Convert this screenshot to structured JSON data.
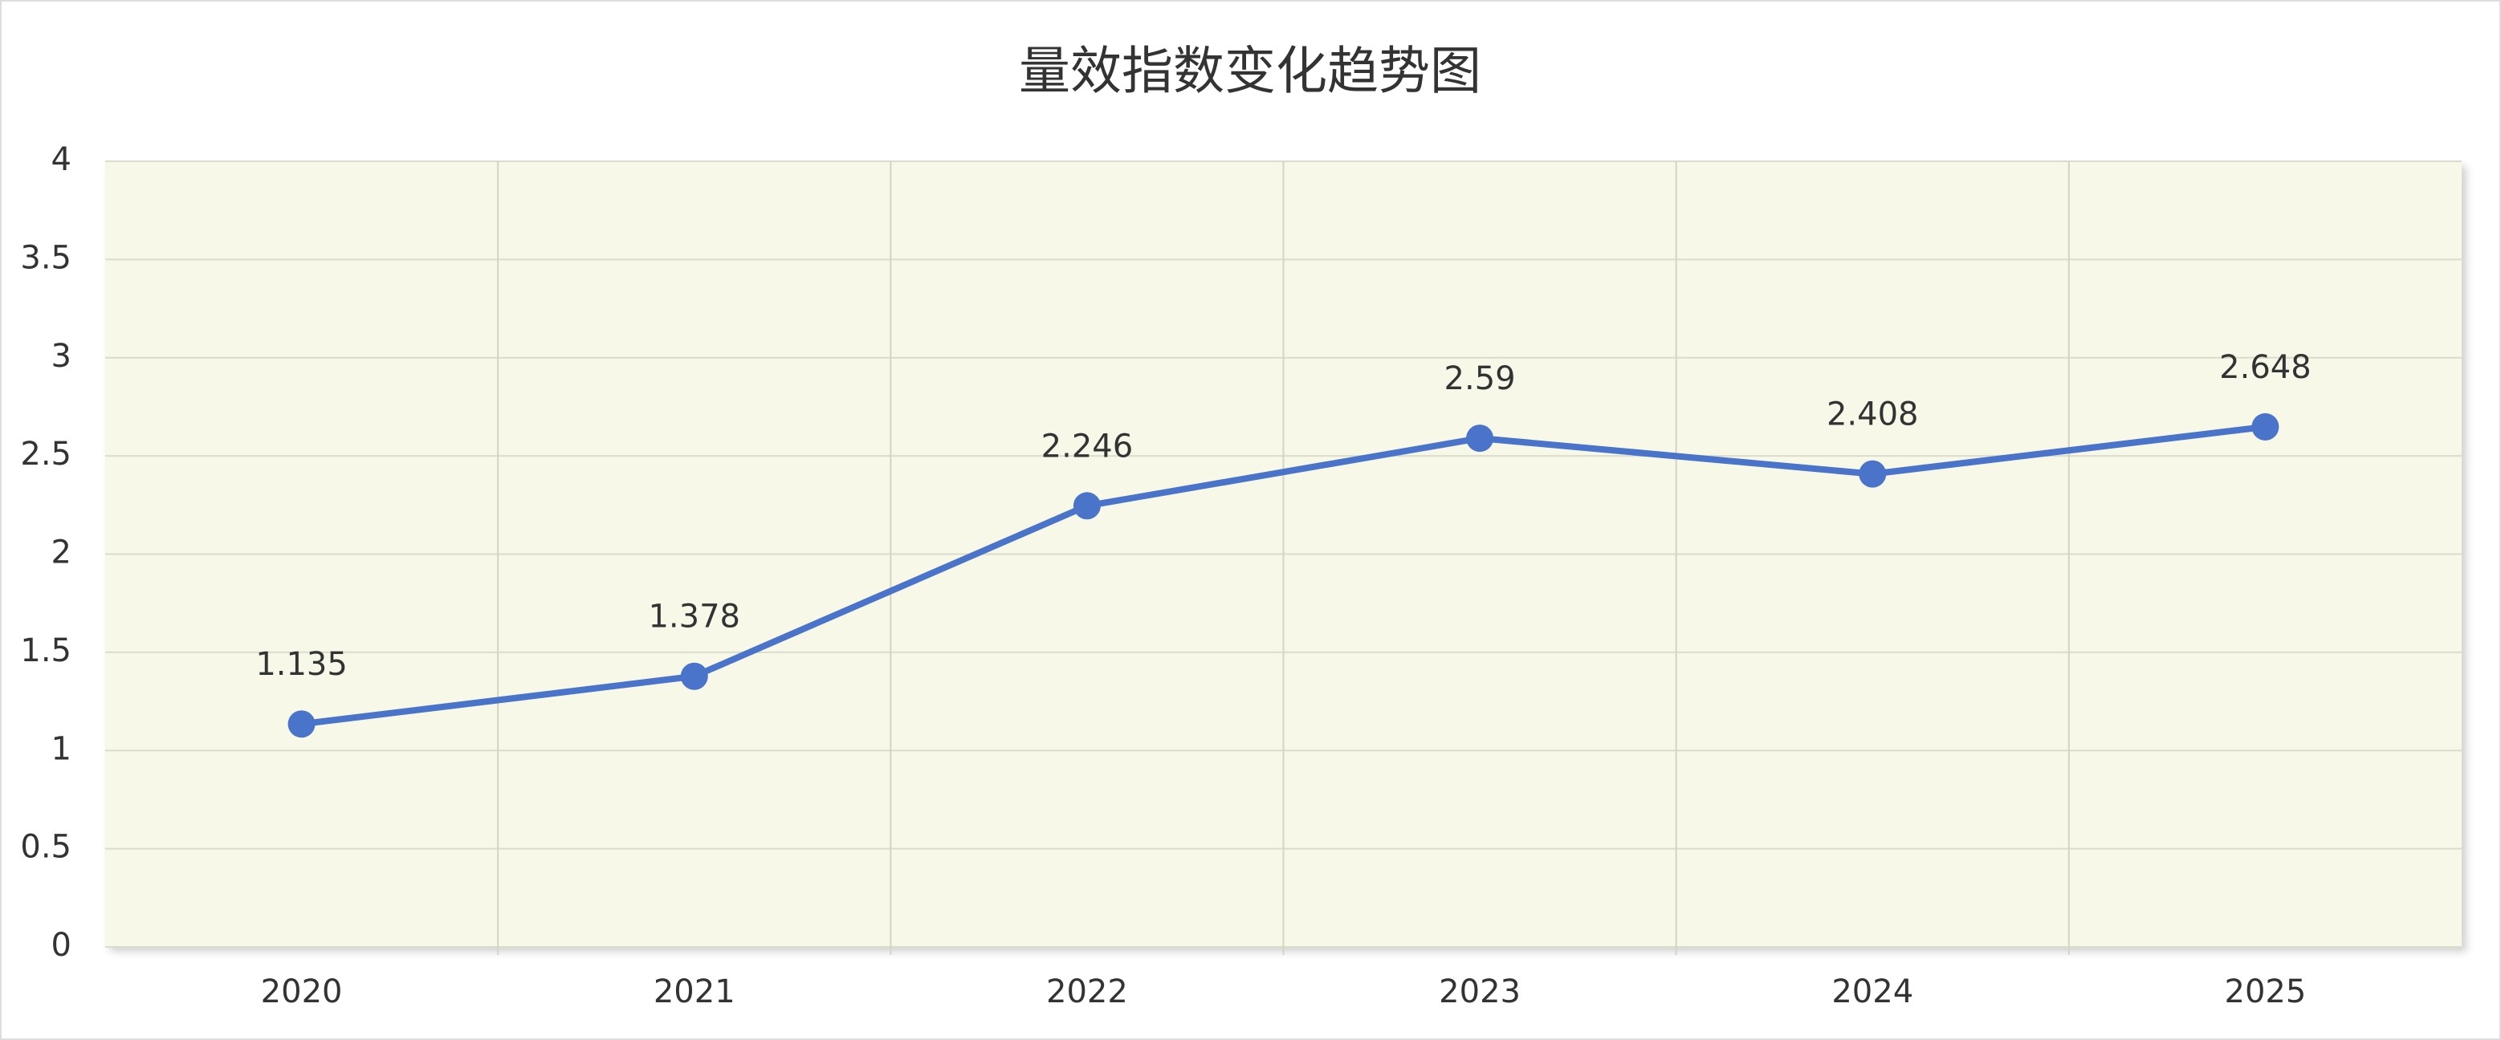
{
  "chart_data": {
    "type": "line",
    "title": "量效指数变化趋势图",
    "categories": [
      "2020",
      "2021",
      "2022",
      "2023",
      "2024",
      "2025"
    ],
    "series": [
      {
        "color": "#4a74c9",
        "values": [
          1.135,
          1.378,
          2.246,
          2.59,
          2.408,
          2.648
        ]
      }
    ],
    "ylim": [
      0,
      4
    ],
    "yticks": [
      0,
      0.5,
      1,
      1.5,
      2,
      2.5,
      3,
      3.5,
      4
    ],
    "grid": true
  }
}
